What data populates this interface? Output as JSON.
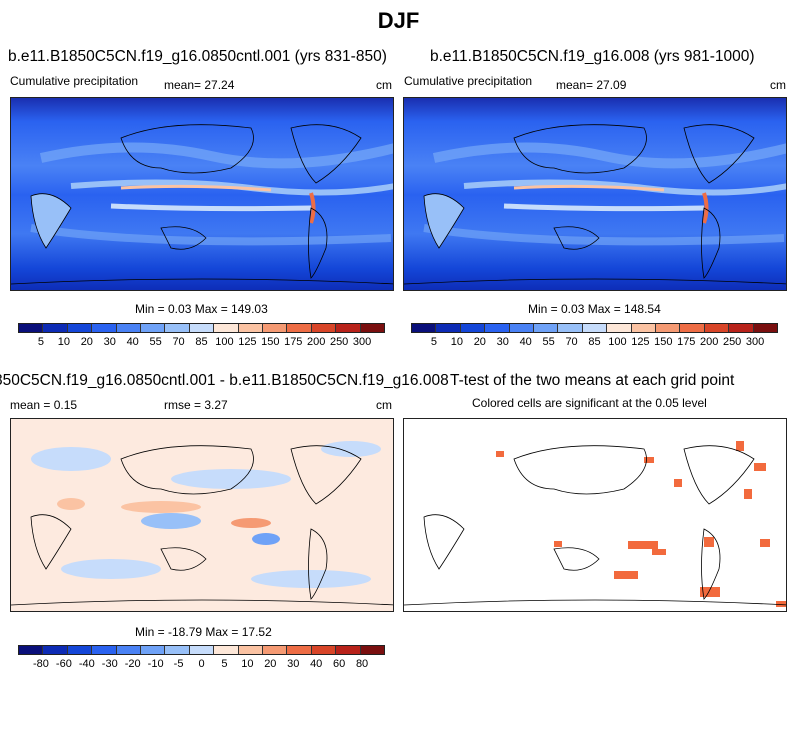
{
  "main_title": "DJF",
  "panel1": {
    "title": "b.e11.B1850C5CN.f19_g16.0850cntl.001 (yrs 831-850)",
    "left_label": "Cumulative precipitation",
    "mean_label": "mean=  27.24",
    "units": "cm",
    "minmax": "Min =   0.03 Max = 149.03"
  },
  "panel2": {
    "title": "b.e11.B1850C5CN.f19_g16.008 (yrs 981-1000)",
    "left_label": "Cumulative precipitation",
    "mean_label": "mean=  27.09",
    "units": "cm",
    "minmax": "Min =   0.03 Max = 148.54"
  },
  "panel3": {
    "title": "850C5CN.f19_g16.0850cntl.001 - b.e11.B1850C5CN.f19_g16.008",
    "mean_label": "mean =   0.15",
    "rmse_label": "rmse =   3.27",
    "units": "cm",
    "minmax": "Min = -18.79 Max =  17.52"
  },
  "panel4": {
    "title": "T-test of the two means at each grid point",
    "subtitle": "Colored cells are significant at the 0.05 level"
  },
  "colorbar_precip": {
    "labels": [
      "5",
      "10",
      "20",
      "30",
      "40",
      "55",
      "70",
      "85",
      "100",
      "125",
      "150",
      "175",
      "200",
      "250",
      "300"
    ],
    "colors": [
      "#0a0f7a",
      "#0d2bb5",
      "#1446d8",
      "#2a62f0",
      "#4a82f5",
      "#6fa2f7",
      "#98c0f8",
      "#c6dcfb",
      "#fde7d8",
      "#fbc3a3",
      "#f59a73",
      "#ee6d45",
      "#d84528",
      "#b8221a",
      "#7a0f0f"
    ]
  },
  "colorbar_diff": {
    "labels": [
      "-80",
      "-60",
      "-40",
      "-30",
      "-20",
      "-10",
      "-5",
      "0",
      "5",
      "10",
      "20",
      "30",
      "40",
      "60",
      "80"
    ],
    "colors": [
      "#0a0f7a",
      "#0d2bb5",
      "#1446d8",
      "#2a62f0",
      "#4a82f5",
      "#6fa2f7",
      "#98c0f8",
      "#c6dcfb",
      "#fde7d8",
      "#fbc3a3",
      "#f59a73",
      "#ee6d45",
      "#d84528",
      "#b8221a",
      "#7a0f0f"
    ]
  }
}
